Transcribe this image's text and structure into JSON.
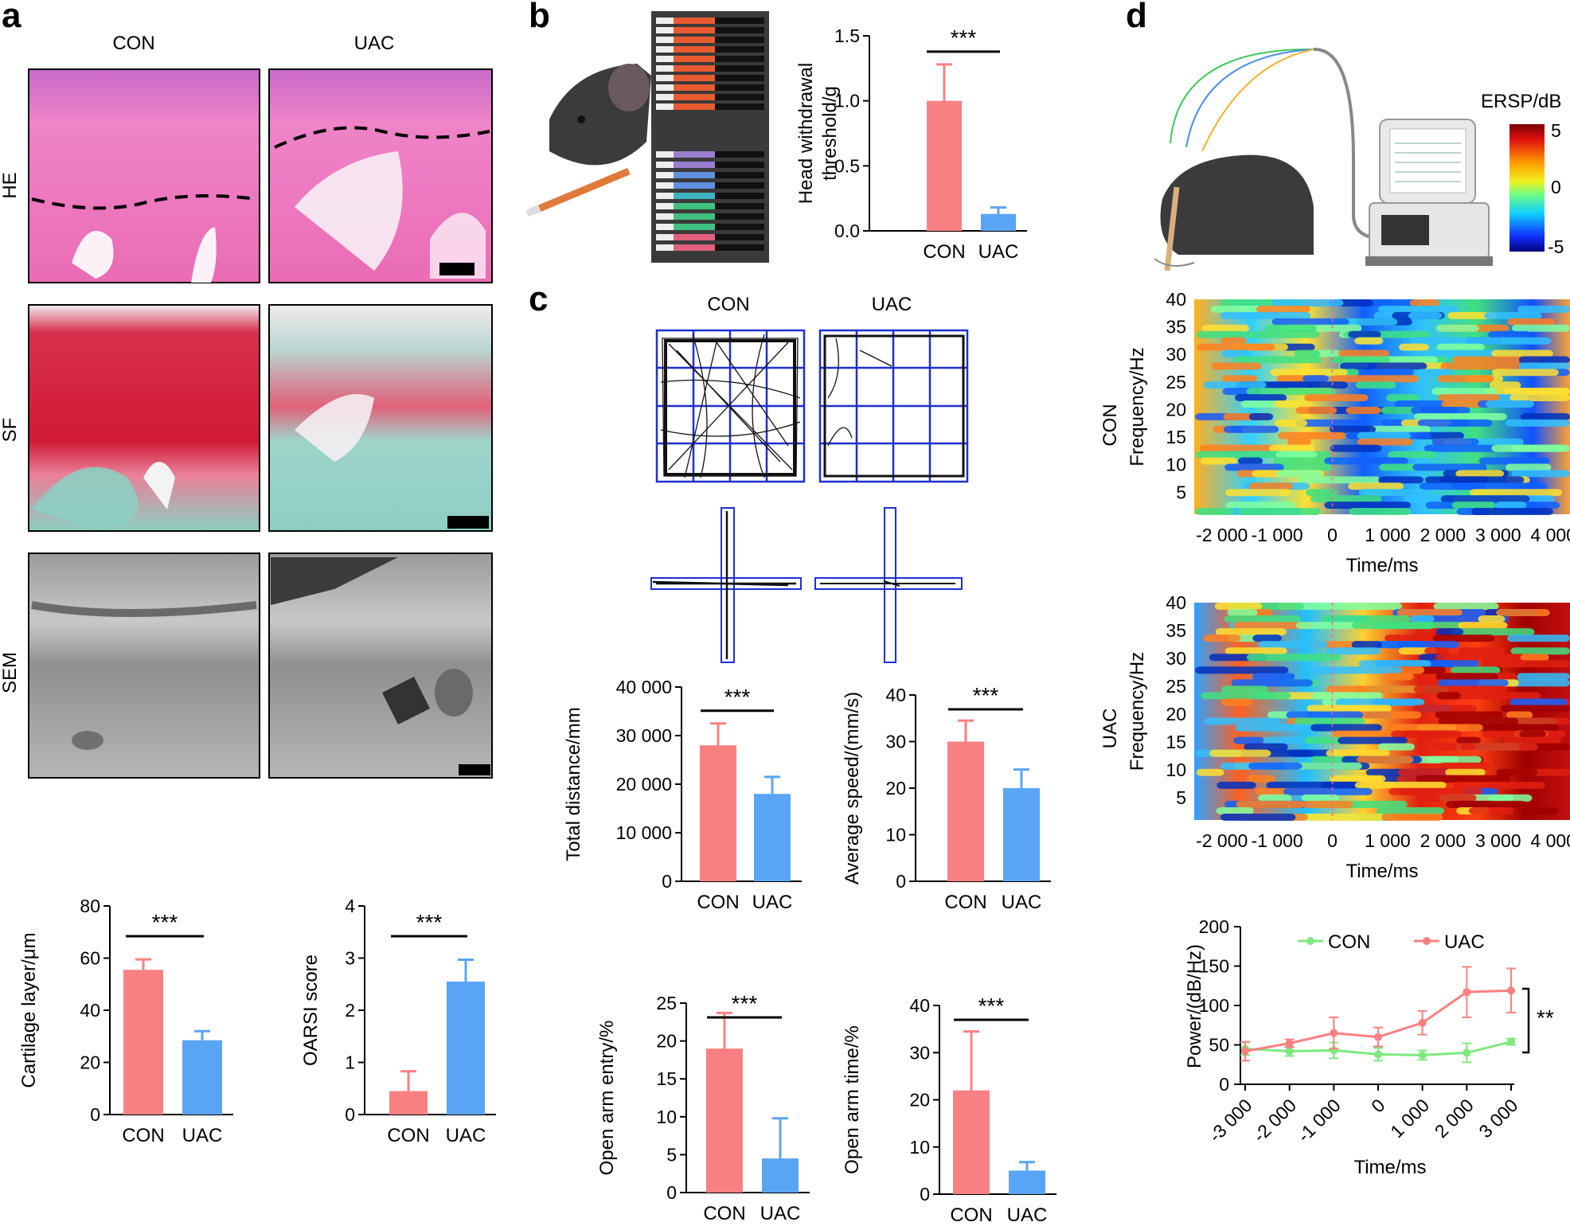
{
  "panel_labels": {
    "a": "a",
    "b": "b",
    "c": "c",
    "d": "d"
  },
  "colors": {
    "con": "#f98082",
    "uac": "#5aa4f5",
    "con_line": "#7ee87e",
    "uac_line": "#f98082",
    "maze_grid": "#1f2fd1"
  },
  "panel_a": {
    "columns": [
      "CON",
      "UAC"
    ],
    "rows": [
      "HE",
      "SF",
      "SEM"
    ]
  },
  "panel_c": {
    "columns": [
      "CON",
      "UAC"
    ]
  },
  "panel_d": {
    "colorbar_title": "ERSP/dB",
    "colorbar_ticks": [
      "5",
      "0",
      "-5"
    ],
    "heatmap_row_labels": [
      "CON",
      "UAC"
    ]
  },
  "chart_data": [
    {
      "id": "cartilage",
      "type": "bar",
      "categories": [
        "CON",
        "UAC"
      ],
      "values": [
        55.5,
        28.5
      ],
      "errors": [
        4,
        3.5
      ],
      "ylabel": "Cartilage layer/μm",
      "ylim": [
        0,
        80
      ],
      "yticks": [
        0,
        20,
        40,
        60,
        80
      ],
      "ytick_labels": [
        "0",
        "20",
        "40",
        "60",
        "80"
      ],
      "significance": "***"
    },
    {
      "id": "oarsi",
      "type": "bar",
      "categories": [
        "CON",
        "UAC"
      ],
      "values": [
        0.45,
        2.55
      ],
      "errors": [
        0.38,
        0.42
      ],
      "ylabel": "OARSI score",
      "ylim": [
        0,
        4
      ],
      "yticks": [
        0,
        1,
        2,
        3,
        4
      ],
      "ytick_labels": [
        "0",
        "1",
        "2",
        "3",
        "4"
      ],
      "significance": "***"
    },
    {
      "id": "headwithdrawal",
      "type": "bar",
      "categories": [
        "CON",
        "UAC"
      ],
      "values": [
        1.0,
        0.13
      ],
      "errors": [
        0.28,
        0.05
      ],
      "ylabel": [
        "Head withdrawal",
        "threshold/g"
      ],
      "ylim": [
        0,
        1.5
      ],
      "yticks": [
        0,
        0.5,
        1.0,
        1.5
      ],
      "ytick_labels": [
        "0.0",
        "0.5",
        "1.0",
        "1.5"
      ],
      "significance": "***"
    },
    {
      "id": "distance",
      "type": "bar",
      "categories": [
        "CON",
        "UAC"
      ],
      "values": [
        28000,
        18000
      ],
      "errors": [
        4500,
        3500
      ],
      "ylabel": "Total distance/mm",
      "ylim": [
        0,
        40000
      ],
      "yticks": [
        0,
        10000,
        20000,
        30000,
        40000
      ],
      "ytick_labels": [
        "0",
        "10 000",
        "20 000",
        "30 000",
        "40 000"
      ],
      "significance": "***"
    },
    {
      "id": "speed",
      "type": "bar",
      "categories": [
        "CON",
        "UAC"
      ],
      "values": [
        30,
        20
      ],
      "errors": [
        4.5,
        4
      ],
      "ylabel": "Average speed/(mm/s)",
      "ylim": [
        0,
        40
      ],
      "yticks": [
        0,
        10,
        20,
        30,
        40
      ],
      "ytick_labels": [
        "0",
        "10",
        "20",
        "30",
        "40"
      ],
      "significance": "***"
    },
    {
      "id": "openentry",
      "type": "bar",
      "categories": [
        "CON",
        "UAC"
      ],
      "values": [
        19,
        4.5
      ],
      "errors": [
        4.7,
        5.3
      ],
      "ylabel": "Open arm entry/%",
      "ylim": [
        0,
        25
      ],
      "yticks": [
        0,
        5,
        10,
        15,
        20,
        25
      ],
      "ytick_labels": [
        "0",
        "5",
        "10",
        "15",
        "20",
        "25"
      ],
      "significance": "***"
    },
    {
      "id": "opentime",
      "type": "bar",
      "categories": [
        "CON",
        "UAC"
      ],
      "values": [
        22,
        5
      ],
      "errors": [
        12.5,
        1.8
      ],
      "ylabel": "Open arm time/%",
      "ylim": [
        0,
        40
      ],
      "yticks": [
        0,
        10,
        20,
        30,
        40
      ],
      "ytick_labels": [
        "0",
        "10",
        "20",
        "30",
        "40"
      ],
      "significance": "***"
    },
    {
      "id": "heatmap_con",
      "type": "heatmap",
      "title": "CON",
      "ylabel": "Frequency/Hz",
      "xlabel": "Time/ms",
      "xlim": [
        -2500,
        4300
      ],
      "ylim": [
        1,
        40
      ],
      "xticks": [
        -2000,
        -1000,
        0,
        1000,
        2000,
        3000,
        4000
      ],
      "xtick_labels": [
        "-2 000",
        "-1 000",
        "0",
        "1 000",
        "2 000",
        "3 000",
        "4 000"
      ],
      "yticks": [
        5,
        10,
        15,
        20,
        25,
        30,
        35,
        40
      ],
      "ytick_labels": [
        "5",
        "10",
        "15",
        "20",
        "25",
        "30",
        "35",
        "40"
      ],
      "color_range": [
        -5,
        5
      ]
    },
    {
      "id": "heatmap_uac",
      "type": "heatmap",
      "title": "UAC",
      "ylabel": "Frequency/Hz",
      "xlabel": "Time/ms",
      "xlim": [
        -2500,
        4300
      ],
      "ylim": [
        1,
        40
      ],
      "xticks": [
        -2000,
        -1000,
        0,
        1000,
        2000,
        3000,
        4000
      ],
      "xtick_labels": [
        "-2 000",
        "-1 000",
        "0",
        "1 000",
        "2 000",
        "3 000",
        "4 000"
      ],
      "yticks": [
        5,
        10,
        15,
        20,
        25,
        30,
        35,
        40
      ],
      "ytick_labels": [
        "5",
        "10",
        "15",
        "20",
        "25",
        "30",
        "35",
        "40"
      ],
      "color_range": [
        -5,
        5
      ]
    },
    {
      "id": "power",
      "type": "line",
      "x": [
        -3000,
        -2000,
        -1000,
        0,
        1000,
        2000,
        3000
      ],
      "xtick_labels": [
        "-3 000",
        "-2 000",
        "-1 000",
        "0",
        "1 000",
        "2 000",
        "3 000"
      ],
      "series": [
        {
          "name": "CON",
          "values": [
            45,
            42,
            43,
            38,
            37,
            40,
            54
          ],
          "errors": [
            8,
            6,
            10,
            8,
            6,
            12,
            4
          ]
        },
        {
          "name": "UAC",
          "values": [
            42,
            52,
            65,
            60,
            78,
            117,
            119
          ],
          "errors": [
            12,
            5,
            20,
            12,
            15,
            32,
            28
          ]
        }
      ],
      "xlabel": "Time/ms",
      "ylabel": "Power/(dB/Hz)",
      "ylim": [
        0,
        200
      ],
      "yticks": [
        0,
        50,
        100,
        150,
        200
      ],
      "ytick_labels": [
        "0",
        "50",
        "100",
        "150",
        "200"
      ],
      "significance": "**"
    }
  ]
}
